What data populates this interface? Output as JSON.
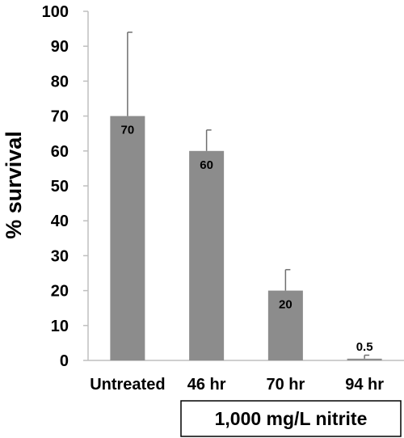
{
  "chart_data": {
    "type": "bar",
    "title": "",
    "ylabel": "% survival",
    "xlabel": "",
    "categories": [
      "Untreated",
      "46 hr",
      "70 hr",
      "94 hr"
    ],
    "values": [
      70,
      60,
      20,
      0.5
    ],
    "data_labels": [
      "70",
      "60",
      "20",
      "0.5"
    ],
    "error_upper": [
      94,
      66,
      26,
      1.5
    ],
    "ylim": [
      0,
      100
    ],
    "yticks": [
      0,
      10,
      20,
      30,
      40,
      50,
      60,
      70,
      80,
      90,
      100
    ],
    "grid": false,
    "group_label": "1,000 mg/L nitrite",
    "colors": {
      "bar": "#8c8c8c",
      "error": "#6f6f6f",
      "axis": "#bfbfbf",
      "text": "#000000"
    }
  }
}
